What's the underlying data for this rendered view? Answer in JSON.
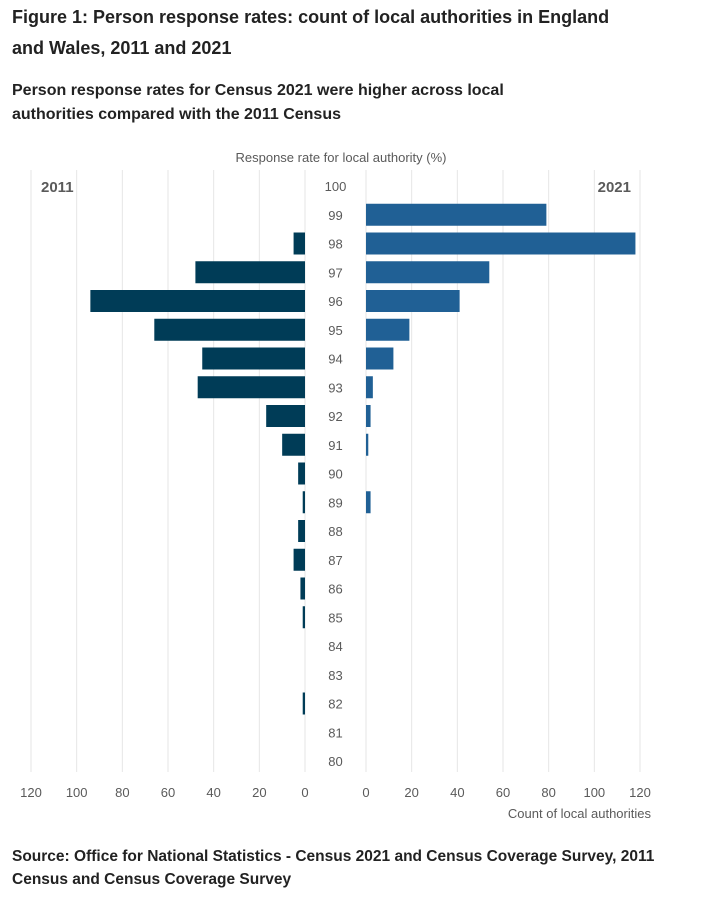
{
  "figure": {
    "title": "Figure 1: Person response rates: count of local authorities in England and Wales, 2011 and 2021",
    "subtitle": "Person response rates for Census 2021 were higher across local authorities compared with the 2011 Census",
    "source": "Source: Office for National Statistics - Census 2021 and Census Coverage Survey, 2011 Census and Census Coverage Survey"
  },
  "colors": {
    "series_2011": "#003c57",
    "series_2021": "#206095",
    "gridline": "#e6e6e6",
    "axis_text": "#5a5a5a",
    "panel_label": "#5a5a5a"
  },
  "chart_data": {
    "type": "bar",
    "orientation": "horizontal",
    "layout": "back-to-back (population pyramid)",
    "title": "",
    "ylabel": "Response rate for local authority (%)",
    "xlabel": "Count of local authorities",
    "categories": [
      "100",
      "99",
      "98",
      "97",
      "96",
      "95",
      "94",
      "93",
      "92",
      "91",
      "90",
      "89",
      "88",
      "87",
      "86",
      "85",
      "84",
      "83",
      "82",
      "81",
      "80"
    ],
    "series": [
      {
        "name": "2011",
        "side": "left",
        "values": [
          0,
          0,
          5,
          48,
          94,
          66,
          45,
          47,
          17,
          10,
          3,
          1,
          3,
          5,
          2,
          1,
          0,
          0,
          1,
          0,
          0
        ]
      },
      {
        "name": "2021",
        "side": "right",
        "values": [
          0,
          79,
          118,
          54,
          41,
          19,
          12,
          3,
          2,
          1,
          0,
          2,
          0,
          0,
          0,
          0,
          0,
          0,
          0,
          0,
          0
        ]
      }
    ],
    "xlim": [
      0,
      120
    ],
    "xticks": [
      0,
      20,
      40,
      60,
      80,
      100,
      120
    ],
    "grid": "vertical gridlines",
    "legend": "panel labels at top: 2011 top-left, 2021 top-right"
  }
}
